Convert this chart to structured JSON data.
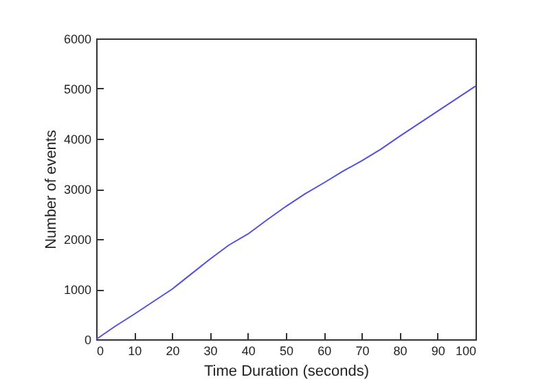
{
  "chart_data": {
    "type": "line",
    "xlabel": "Time Duration (seconds)",
    "ylabel": "Number of events",
    "x": [
      0,
      5,
      10,
      15,
      20,
      25,
      30,
      35,
      40,
      45,
      50,
      55,
      60,
      65,
      70,
      75,
      80,
      85,
      90,
      95,
      100
    ],
    "series": [
      {
        "color": "#5050e0",
        "values": [
          0,
          260,
          500,
          750,
          1000,
          1300,
          1600,
          1880,
          2100,
          2380,
          2650,
          2900,
          3120,
          3350,
          3560,
          3790,
          4050,
          4300,
          4550,
          4800,
          5050
        ]
      }
    ],
    "xlim": [
      0,
      100
    ],
    "xticks": [
      0,
      10,
      20,
      30,
      40,
      50,
      60,
      70,
      80,
      90,
      100
    ],
    "ylim": [
      0,
      6000
    ],
    "yticks": [
      0,
      1000,
      2000,
      3000,
      4000,
      5000,
      6000
    ],
    "grid": false
  }
}
